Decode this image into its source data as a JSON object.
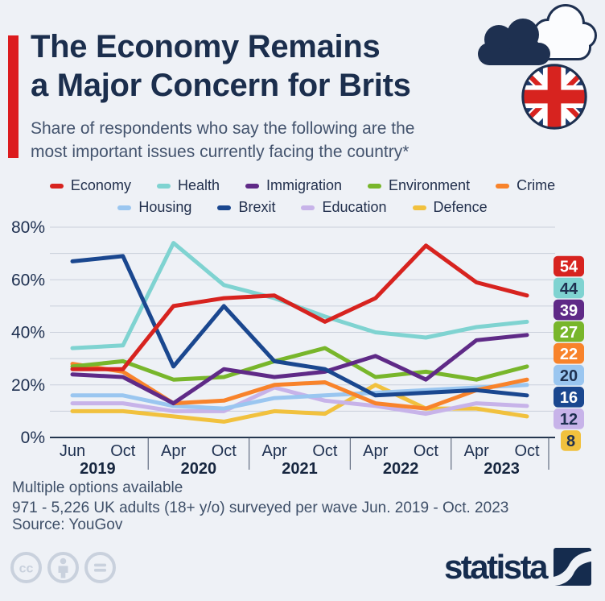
{
  "header": {
    "title_line1": "The Economy Remains",
    "title_line2": "a Major Concern for Brits",
    "subtitle_line1": "Share of respondents who say the following are the",
    "subtitle_line2": "most important issues currently facing the country*",
    "accent_color": "#dc1b1e"
  },
  "chart_data": {
    "type": "line",
    "title": "The Economy Remains a Major Concern for Brits",
    "unit": "%",
    "categories": [
      "Jun 2019",
      "Oct 2019",
      "Apr 2020",
      "Oct 2020",
      "Apr 2021",
      "Oct 2021",
      "Apr 2022",
      "Oct 2022",
      "Apr 2023",
      "Oct 2023"
    ],
    "x_months": [
      "Jun",
      "Oct",
      "Apr",
      "Oct",
      "Apr",
      "Oct",
      "Apr",
      "Oct",
      "Apr",
      "Oct"
    ],
    "x_years": [
      "2019",
      "2020",
      "2021",
      "2022",
      "2023"
    ],
    "ylim": [
      0,
      80
    ],
    "y_ticks": [
      0,
      20,
      40,
      60,
      80
    ],
    "y_tick_suffix": "%",
    "grid_step": 10,
    "grid_on": true,
    "legend_position": "top",
    "series": [
      {
        "name": "Economy",
        "color": "#d7231f",
        "badge_text_dark": false,
        "values": [
          26,
          26,
          50,
          53,
          54,
          44,
          53,
          73,
          59,
          54
        ]
      },
      {
        "name": "Health",
        "color": "#7fd3d1",
        "badge_text_dark": true,
        "values": [
          34,
          35,
          74,
          58,
          53,
          46,
          40,
          38,
          42,
          44
        ]
      },
      {
        "name": "Immigration",
        "color": "#5f2a87",
        "badge_text_dark": false,
        "values": [
          24,
          23,
          13,
          26,
          23,
          25,
          31,
          22,
          37,
          39
        ]
      },
      {
        "name": "Environment",
        "color": "#78b62b",
        "badge_text_dark": false,
        "values": [
          27,
          29,
          22,
          23,
          29,
          34,
          23,
          25,
          22,
          27
        ]
      },
      {
        "name": "Crime",
        "color": "#f8832b",
        "badge_text_dark": false,
        "values": [
          28,
          25,
          13,
          14,
          20,
          21,
          13,
          11,
          18,
          22
        ]
      },
      {
        "name": "Housing",
        "color": "#9ac6f0",
        "badge_text_dark": true,
        "values": [
          16,
          16,
          12,
          11,
          15,
          16,
          17,
          18,
          19,
          20
        ]
      },
      {
        "name": "Brexit",
        "color": "#1a478f",
        "badge_text_dark": false,
        "values": [
          67,
          69,
          27,
          50,
          29,
          26,
          16,
          17,
          18,
          16
        ]
      },
      {
        "name": "Education",
        "color": "#c7b3e9",
        "badge_text_dark": true,
        "values": [
          13,
          13,
          10,
          10,
          19,
          14,
          12,
          9,
          13,
          12
        ]
      },
      {
        "name": "Defence",
        "color": "#f1c13e",
        "badge_text_dark": true,
        "values": [
          10,
          10,
          8,
          6,
          10,
          9,
          20,
          11,
          11,
          8
        ]
      }
    ],
    "end_labels": [
      54,
      44,
      39,
      27,
      22,
      20,
      16,
      12,
      8
    ],
    "z_order": [
      "Defence",
      "Education",
      "Housing",
      "Crime",
      "Environment",
      "Immigration",
      "Health",
      "Brexit",
      "Economy"
    ],
    "legend_rows": [
      [
        "Economy",
        "Health",
        "Immigration",
        "Environment",
        "Crime"
      ],
      [
        "Housing",
        "Brexit",
        "Education",
        "Defence"
      ]
    ]
  },
  "footer": {
    "note_line1": "Multiple options available",
    "note_line2": "971 - 5,226 UK adults (18+ y/o) surveyed per wave Jun. 2019 - Oct. 2023",
    "source": "Source: YouGov"
  },
  "branding": {
    "logo_text": "statista"
  },
  "colors": {
    "background": "#eef1f6",
    "title": "#1b2e4d",
    "subtitle": "#44546e",
    "axis_text": "#1e3050",
    "gridline": "#cad0db",
    "baseline": "#24364f",
    "badge_dark_text": "#1e3050",
    "cc_icon": "#c9d1dd",
    "logo_navy": "#152c4e"
  }
}
